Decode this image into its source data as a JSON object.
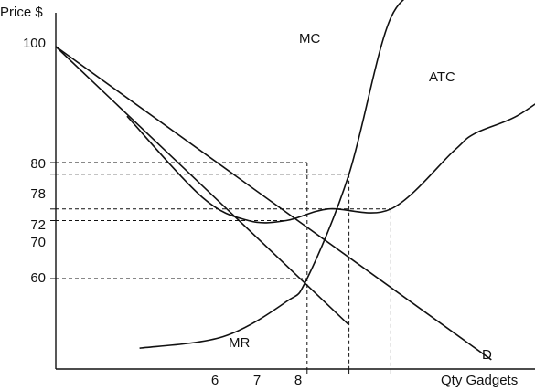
{
  "chart_data": {
    "type": "line",
    "ylabel": "Price $",
    "xlabel": "Qty Gadgets",
    "y_ticks": [
      "100",
      "80",
      "78",
      "72",
      "70",
      "60"
    ],
    "x_ticks": [
      "6",
      "7",
      "8"
    ],
    "series": [
      {
        "name": "D",
        "points": [
          [
            0,
            100
          ],
          [
            10.4,
            46
          ]
        ]
      },
      {
        "name": "MR",
        "points": [
          [
            0,
            100
          ],
          [
            7.0,
            52
          ]
        ]
      },
      {
        "name": "MC",
        "points": [
          [
            2.0,
            48
          ],
          [
            4.0,
            50
          ],
          [
            5.5,
            56
          ],
          [
            6.0,
            60
          ],
          [
            7.0,
            78
          ],
          [
            8.0,
            105
          ],
          [
            9.0,
            110
          ]
        ]
      },
      {
        "name": "ATC",
        "points": [
          [
            1.7,
            88
          ],
          [
            3.5,
            74
          ],
          [
            4.6,
            70
          ],
          [
            5.5,
            70
          ],
          [
            6.5,
            72
          ],
          [
            8.0,
            72
          ],
          [
            9.5,
            82
          ],
          [
            10.0,
            85
          ],
          [
            11.0,
            88
          ],
          [
            12.0,
            93
          ]
        ]
      }
    ],
    "guides": [
      {
        "price": 80,
        "qty": 6
      },
      {
        "price": 78,
        "qty": 7
      },
      {
        "price": 72,
        "qty": 8
      },
      {
        "price": 70,
        "qty": null
      },
      {
        "price": 60,
        "qty": null
      }
    ]
  }
}
